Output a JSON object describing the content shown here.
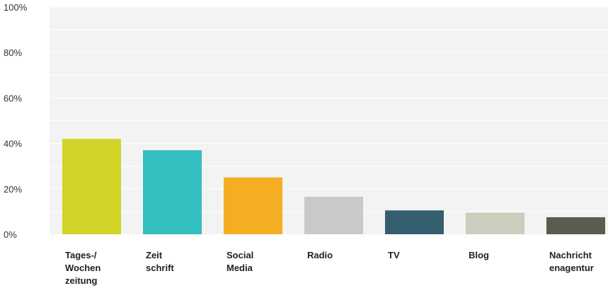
{
  "chart_data": {
    "type": "bar",
    "title": "",
    "xlabel": "",
    "ylabel": "",
    "ylim": [
      0,
      100
    ],
    "yticks": [
      "0%",
      "20%",
      "40%",
      "60%",
      "80%",
      "100%"
    ],
    "ytick_values": [
      0,
      20,
      40,
      60,
      80,
      100
    ],
    "grid": true,
    "categories": [
      [
        "Tages-/",
        "Wochen",
        "zeitung"
      ],
      [
        "Zeit",
        "schrift"
      ],
      [
        "Social",
        "Media"
      ],
      [
        "Radio"
      ],
      [
        "TV"
      ],
      [
        "Blog"
      ],
      [
        "Nachricht",
        "enagentur"
      ]
    ],
    "values": [
      42,
      37,
      25,
      16.5,
      10.5,
      9.5,
      7.5
    ],
    "colors": [
      "#d2d42a",
      "#33bfbf",
      "#f5ad24",
      "#c9c9c9",
      "#355f6e",
      "#cdcdbe",
      "#5b5c4e"
    ],
    "plot_background": "#f3f3f3",
    "grid_color": "#ffffff"
  }
}
